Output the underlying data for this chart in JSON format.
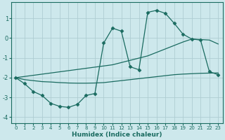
{
  "xlabel": "Humidex (Indice chaleur)",
  "background_color": "#cde8ec",
  "grid_color": "#aecdd2",
  "line_color": "#1a6b60",
  "xlim": [
    -0.5,
    23.5
  ],
  "ylim": [
    -4.3,
    1.8
  ],
  "xticks": [
    0,
    1,
    2,
    3,
    4,
    5,
    6,
    7,
    8,
    9,
    10,
    11,
    12,
    13,
    14,
    15,
    16,
    17,
    18,
    19,
    20,
    21,
    22,
    23
  ],
  "yticks": [
    -4,
    -3,
    -2,
    -1,
    0,
    1
  ],
  "wiggly_x": [
    0,
    1,
    2,
    3,
    4,
    5,
    6,
    7,
    8,
    9,
    10,
    11,
    12,
    13,
    14,
    15,
    16,
    17,
    18,
    19,
    20,
    21,
    22,
    23
  ],
  "wiggly_y": [
    -2.0,
    -2.3,
    -2.7,
    -2.9,
    -3.3,
    -3.45,
    -3.5,
    -3.35,
    -2.9,
    -2.8,
    -0.25,
    0.5,
    0.35,
    -1.45,
    -1.6,
    1.3,
    1.4,
    1.25,
    0.75,
    0.2,
    -0.05,
    -0.1,
    -1.7,
    -1.85
  ],
  "diag_x": [
    0,
    11,
    15,
    17,
    19,
    20,
    22,
    23
  ],
  "diag_y": [
    -2.0,
    -1.35,
    -0.9,
    -0.55,
    -0.2,
    -0.05,
    -0.1,
    -0.3
  ],
  "flat_x": [
    0,
    1,
    2,
    3,
    4,
    5,
    6,
    7,
    8,
    9,
    10,
    11,
    12,
    13,
    14,
    15,
    16,
    17,
    18,
    19,
    20,
    21,
    22,
    23
  ],
  "flat_y": [
    -2.0,
    -2.1,
    -2.15,
    -2.2,
    -2.22,
    -2.25,
    -2.27,
    -2.28,
    -2.28,
    -2.27,
    -2.25,
    -2.2,
    -2.15,
    -2.1,
    -2.05,
    -2.0,
    -1.95,
    -1.9,
    -1.85,
    -1.82,
    -1.8,
    -1.78,
    -1.77,
    -1.76
  ]
}
